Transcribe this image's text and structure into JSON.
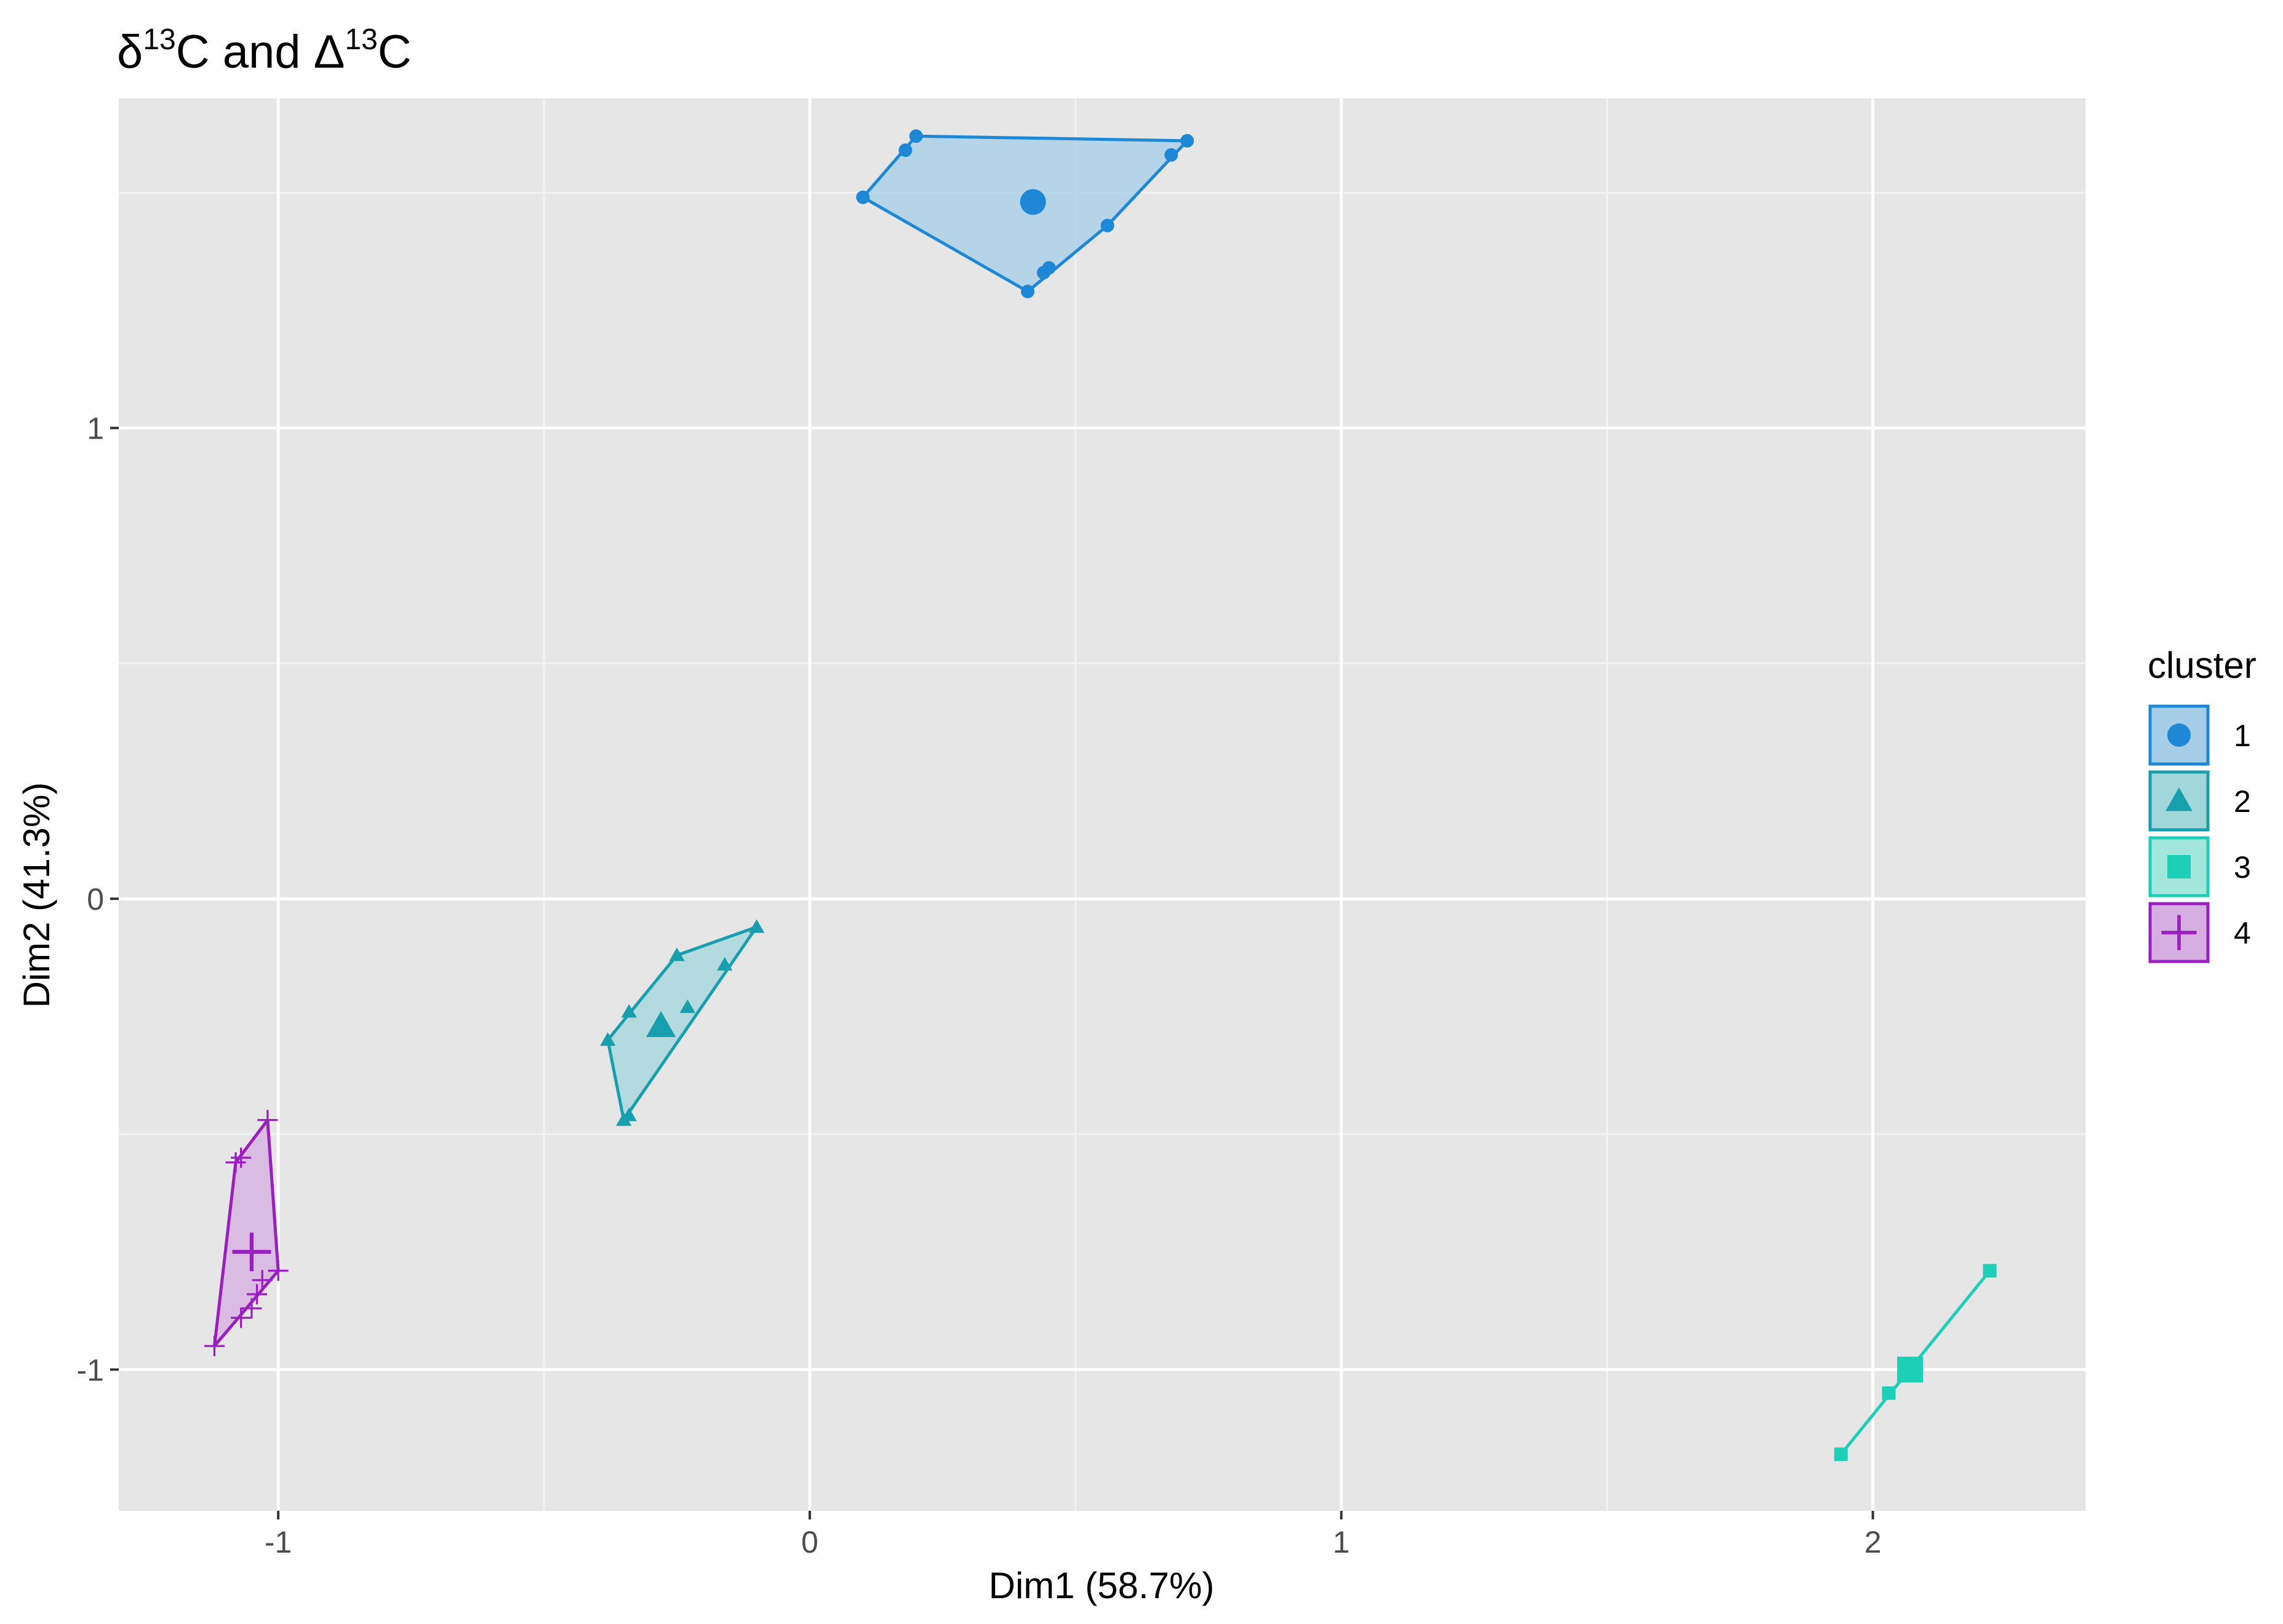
{
  "chart_data": {
    "type": "scatter",
    "title_parts": {
      "a_symbol": "δ",
      "a_sup": "13",
      "a_tail": "C",
      "joiner": " and ",
      "b_symbol": "Δ",
      "b_sup": "13",
      "b_tail": "C"
    },
    "xlabel": "Dim1 (58.7%)",
    "ylabel": "Dim2 (41.3%)",
    "xlim": [
      -1.3,
      2.4
    ],
    "ylim": [
      -1.3,
      1.7
    ],
    "x_ticks": [
      -1,
      0,
      1,
      2
    ],
    "x_tick_labels": [
      "-1",
      "0",
      "1",
      "2"
    ],
    "y_ticks": [
      -1,
      0,
      1
    ],
    "y_tick_labels": [
      "-1",
      "0",
      "1"
    ],
    "x_minor": [
      -0.5,
      0.5,
      1.5
    ],
    "y_minor": [
      -0.5,
      0.5,
      1.5
    ],
    "grid": true,
    "panel_color": "#e6e6e6",
    "legend": {
      "title": "cluster",
      "position": "right"
    },
    "series": [
      {
        "name": "1",
        "shape": "circle",
        "color": "#1e88d6",
        "fill": "#a6cde8",
        "points": [
          [
            0.1,
            1.49
          ],
          [
            0.18,
            1.59
          ],
          [
            0.2,
            1.62
          ],
          [
            0.41,
            1.29
          ],
          [
            0.44,
            1.33
          ],
          [
            0.45,
            1.34
          ],
          [
            0.56,
            1.43
          ],
          [
            0.68,
            1.58
          ],
          [
            0.71,
            1.61
          ]
        ],
        "hull": [
          [
            0.1,
            1.49
          ],
          [
            0.2,
            1.62
          ],
          [
            0.71,
            1.61
          ],
          [
            0.56,
            1.43
          ],
          [
            0.41,
            1.29
          ]
        ],
        "centroid": [
          0.42,
          1.48
        ]
      },
      {
        "name": "2",
        "shape": "triangle",
        "color": "#179fae",
        "fill": "#a1d6db",
        "points": [
          [
            -0.38,
            -0.3
          ],
          [
            -0.35,
            -0.47
          ],
          [
            -0.34,
            -0.46
          ],
          [
            -0.34,
            -0.24
          ],
          [
            -0.25,
            -0.12
          ],
          [
            -0.23,
            -0.23
          ],
          [
            -0.16,
            -0.14
          ],
          [
            -0.1,
            -0.06
          ]
        ],
        "hull": [
          [
            -0.38,
            -0.3
          ],
          [
            -0.25,
            -0.12
          ],
          [
            -0.1,
            -0.06
          ],
          [
            -0.35,
            -0.47
          ]
        ],
        "centroid": [
          -0.28,
          -0.27
        ]
      },
      {
        "name": "3",
        "shape": "square",
        "color": "#1dcfb6",
        "fill": "#a3e6dc",
        "points": [
          [
            1.94,
            -1.18
          ],
          [
            2.03,
            -1.05
          ],
          [
            2.08,
            -1.0
          ],
          [
            2.22,
            -0.79
          ]
        ],
        "hull": [
          [
            1.94,
            -1.18
          ],
          [
            2.22,
            -0.79
          ]
        ],
        "centroid": [
          2.07,
          -1.0
        ]
      },
      {
        "name": "4",
        "shape": "plus",
        "color": "#9a1fbf",
        "fill": "#d6aee2",
        "points": [
          [
            -1.12,
            -0.95
          ],
          [
            -1.08,
            -0.56
          ],
          [
            -1.07,
            -0.55
          ],
          [
            -1.07,
            -0.89
          ],
          [
            -1.05,
            -0.87
          ],
          [
            -1.04,
            -0.84
          ],
          [
            -1.03,
            -0.81
          ],
          [
            -1.02,
            -0.47
          ],
          [
            -1.0,
            -0.79
          ]
        ],
        "hull": [
          [
            -1.12,
            -0.95
          ],
          [
            -1.08,
            -0.56
          ],
          [
            -1.02,
            -0.47
          ],
          [
            -1.0,
            -0.79
          ]
        ],
        "centroid": [
          -1.05,
          -0.75
        ]
      }
    ]
  }
}
